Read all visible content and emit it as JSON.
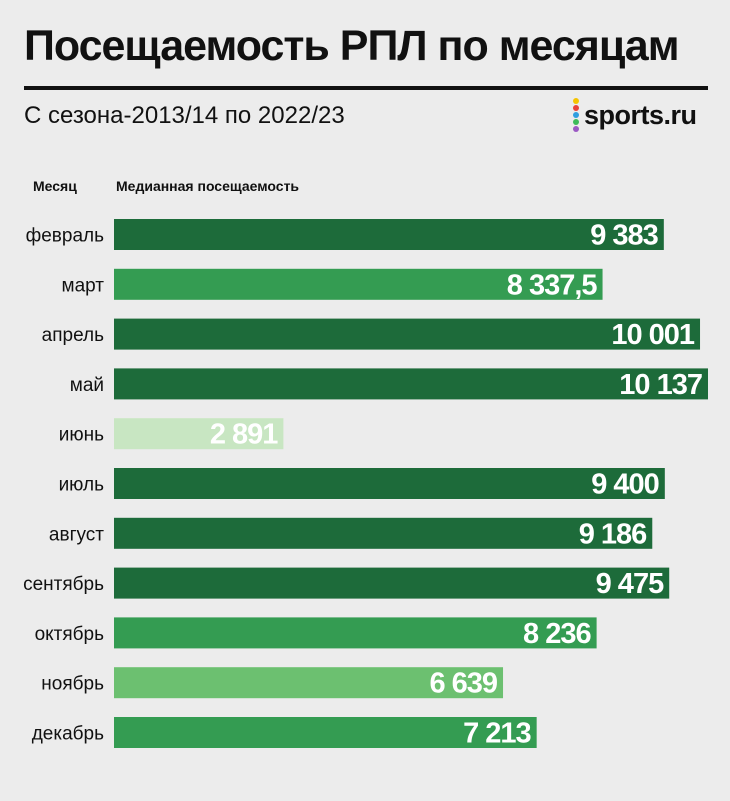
{
  "title": "Посещаемость РПЛ по месяцам",
  "subtitle": "С сезона-2013/14 по 2022/23",
  "logo": {
    "text": "sports.ru",
    "dot_colors": [
      "#f5c400",
      "#e9433a",
      "#2f9ee0",
      "#3dbb5a",
      "#9b59c4"
    ]
  },
  "colors": {
    "dark": "#1d6b3a",
    "mid": "#349c52",
    "light": "#6cc070",
    "pale": "#c8e6c2",
    "label_light": "#ffffff",
    "label_dark": "#111111"
  },
  "chart_data": {
    "type": "bar",
    "orientation": "horizontal",
    "title": "Посещаемость РПЛ по месяцам",
    "subtitle": "С сезона-2013/14 по 2022/23",
    "xlabel": "Медианная посещаемость",
    "ylabel": "Месяц",
    "xlim": [
      0,
      10137
    ],
    "categories": [
      "февраль",
      "март",
      "апрель",
      "май",
      "июнь",
      "июль",
      "август",
      "сентябрь",
      "октябрь",
      "ноябрь",
      "декабрь"
    ],
    "values": [
      9383,
      8337.5,
      10001,
      10137,
      2891,
      9400,
      9186,
      9475,
      8236,
      6639,
      7213
    ],
    "value_labels": [
      "9 383",
      "8 337,5",
      "10 001",
      "10 137",
      "2 891",
      "9 400",
      "9 186",
      "9 475",
      "8 236",
      "6 639",
      "7 213"
    ],
    "shades": [
      "dark",
      "mid",
      "dark",
      "dark",
      "pale",
      "dark",
      "dark",
      "dark",
      "mid",
      "light",
      "mid"
    ]
  }
}
